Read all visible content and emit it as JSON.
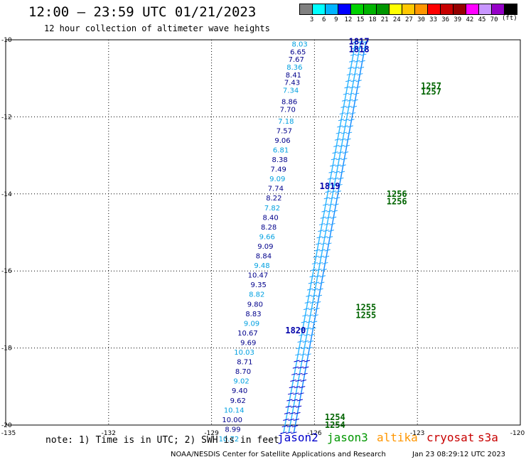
{
  "header": {
    "title": "12:00 – 23:59 UTC 01/21/2023",
    "subtitle": "12 hour collection of altimeter wave heights"
  },
  "color_scale": {
    "unit": "(ft)",
    "colors": [
      "#808080",
      "#00ffff",
      "#00b4ff",
      "#0000ff",
      "#00d200",
      "#00b400",
      "#009600",
      "#ffff00",
      "#ffc800",
      "#ff9600",
      "#ff0000",
      "#c80000",
      "#960000",
      "#ff00ff",
      "#c896ff",
      "#9600c8",
      "#000000"
    ],
    "labels": [
      "3",
      "6",
      "9",
      "12",
      "15",
      "18",
      "21",
      "24",
      "27",
      "30",
      "33",
      "36",
      "39",
      "42",
      "45",
      "70"
    ]
  },
  "map": {
    "lon_labels": [
      "-135",
      "-132",
      "-129",
      "-126",
      "-123",
      "-120"
    ],
    "lat_labels": [
      "-10",
      "-12",
      "-14",
      "-16",
      "-18",
      "-20"
    ],
    "lon_range": [
      -135,
      -120
    ],
    "lat_range": [
      -20,
      -10
    ]
  },
  "chart_data": {
    "type": "scatter",
    "tracks": [
      {
        "satellite": "jason2",
        "color": "#0000aa",
        "points": [
          {
            "lat": -10.1,
            "lon": -126.2,
            "swh": "8.03"
          },
          {
            "lat": -10.3,
            "lon": -126.25,
            "swh": "6.65"
          },
          {
            "lat": -10.5,
            "lon": -126.3,
            "swh": "7.67"
          },
          {
            "lat": -10.7,
            "lon": -126.35,
            "swh": "8.36"
          },
          {
            "lat": -10.9,
            "lon": -126.38,
            "swh": "8.41"
          },
          {
            "lat": -11.1,
            "lon": -126.42,
            "swh": "7.43"
          },
          {
            "lat": -11.3,
            "lon": -126.46,
            "swh": "7.34"
          },
          {
            "lat": -11.6,
            "lon": -126.5,
            "swh": "8.86"
          },
          {
            "lat": -11.8,
            "lon": -126.55,
            "swh": "7.70"
          },
          {
            "lat": -12.1,
            "lon": -126.6,
            "swh": "7.18"
          },
          {
            "lat": -12.35,
            "lon": -126.65,
            "swh": "7.57"
          },
          {
            "lat": -12.6,
            "lon": -126.7,
            "swh": "9.06"
          },
          {
            "lat": -12.85,
            "lon": -126.75,
            "swh": "6.81"
          },
          {
            "lat": -13.1,
            "lon": -126.78,
            "swh": "8.38"
          },
          {
            "lat": -13.35,
            "lon": -126.82,
            "swh": "7.49"
          },
          {
            "lat": -13.6,
            "lon": -126.85,
            "swh": "9.09"
          },
          {
            "lat": -13.85,
            "lon": -126.9,
            "swh": "7.74"
          },
          {
            "lat": -14.1,
            "lon": -126.95,
            "swh": "8.22"
          },
          {
            "lat": -14.35,
            "lon": -127.0,
            "swh": "7.82"
          },
          {
            "lat": -14.6,
            "lon": -127.05,
            "swh": "8.40"
          },
          {
            "lat": -14.85,
            "lon": -127.1,
            "swh": "8.28"
          },
          {
            "lat": -15.1,
            "lon": -127.15,
            "swh": "9.66"
          },
          {
            "lat": -15.35,
            "lon": -127.2,
            "swh": "9.09"
          },
          {
            "lat": -15.6,
            "lon": -127.25,
            "swh": "8.84"
          },
          {
            "lat": -15.85,
            "lon": -127.3,
            "swh": "9.48"
          },
          {
            "lat": -16.1,
            "lon": -127.35,
            "swh": "10.47"
          },
          {
            "lat": -16.35,
            "lon": -127.4,
            "swh": "9.35"
          },
          {
            "lat": -16.6,
            "lon": -127.45,
            "swh": "8.82"
          },
          {
            "lat": -16.85,
            "lon": -127.5,
            "swh": "9.80"
          },
          {
            "lat": -17.1,
            "lon": -127.55,
            "swh": "8.83"
          },
          {
            "lat": -17.35,
            "lon": -127.6,
            "swh": "9.09"
          },
          {
            "lat": -17.6,
            "lon": -127.65,
            "swh": "10.67"
          },
          {
            "lat": -17.85,
            "lon": -127.7,
            "swh": "9.69"
          },
          {
            "lat": -18.1,
            "lon": -127.75,
            "swh": "10.03"
          },
          {
            "lat": -18.35,
            "lon": -127.8,
            "swh": "8.71"
          },
          {
            "lat": -18.6,
            "lon": -127.85,
            "swh": "8.70"
          },
          {
            "lat": -18.85,
            "lon": -127.9,
            "swh": "9.02"
          },
          {
            "lat": -19.1,
            "lon": -127.95,
            "swh": "9.40"
          },
          {
            "lat": -19.35,
            "lon": -128.0,
            "swh": "9.62"
          },
          {
            "lat": -19.6,
            "lon": -128.05,
            "swh": "10.14"
          },
          {
            "lat": -19.85,
            "lon": -128.1,
            "swh": "10.00"
          },
          {
            "lat": -20.1,
            "lon": -128.15,
            "swh": "8.99"
          },
          {
            "lat": -20.35,
            "lon": -128.2,
            "swh": "10.72"
          }
        ],
        "time_labels": [
          {
            "lat": -10.05,
            "lon": -125.0,
            "text": "1817"
          },
          {
            "lat": -10.25,
            "lon": -125.0,
            "text": "1818"
          },
          {
            "lat": -13.8,
            "lon": -125.85,
            "text": "1819"
          },
          {
            "lat": -17.55,
            "lon": -126.85,
            "text": "1820"
          }
        ]
      },
      {
        "satellite": "jason3",
        "color": "#006400",
        "points": [],
        "time_labels": [
          {
            "lat": -11.2,
            "lon": -122.9,
            "text": "1257"
          },
          {
            "lat": -11.35,
            "lon": -122.9,
            "text": "1257"
          },
          {
            "lat": -14.0,
            "lon": -123.9,
            "text": "1256"
          },
          {
            "lat": -14.2,
            "lon": -123.9,
            "text": "1256"
          },
          {
            "lat": -16.95,
            "lon": -124.8,
            "text": "1255"
          },
          {
            "lat": -17.15,
            "lon": -124.8,
            "text": "1255"
          },
          {
            "lat": -19.8,
            "lon": -125.7,
            "text": "1254"
          },
          {
            "lat": -20.0,
            "lon": -125.7,
            "text": "1254"
          }
        ]
      }
    ]
  },
  "legend": {
    "note": "note: 1) Time is in UTC; 2) SWH is in feet",
    "satellites": [
      {
        "name": "jason2",
        "color": "#0000cc"
      },
      {
        "name": "jason3",
        "color": "#009600"
      },
      {
        "name": "altika",
        "color": "#ff9600"
      },
      {
        "name": "cryosat",
        "color": "#c80000"
      },
      {
        "name": "s3a",
        "color": "#c80000"
      }
    ]
  },
  "footer": {
    "credit": "NOAA/NESDIS Center for Satellite Applications and Research",
    "timestamp": "Jan 23 08:29:12 UTC 2023"
  }
}
